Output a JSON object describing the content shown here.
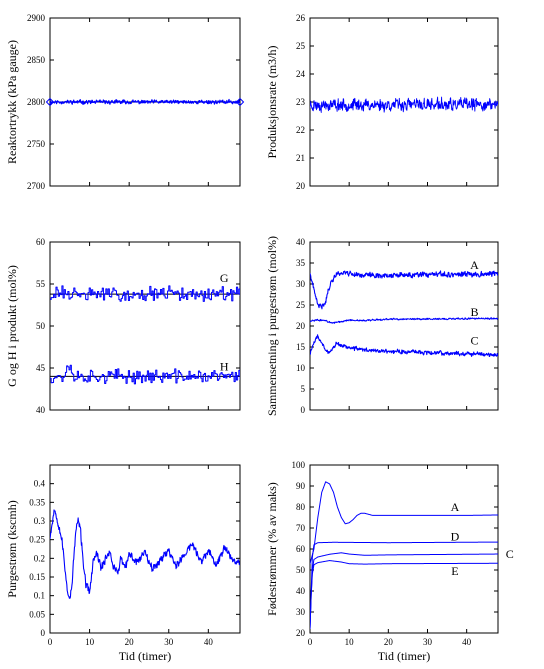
{
  "colors": {
    "series": "#0000ff",
    "setpoint": "#000000",
    "axes": "#000000",
    "background": "#ffffff"
  },
  "chart_data": [
    {
      "type": "line",
      "ylabel": "Reaktortrykk (kPa gauge)",
      "xlabel": "",
      "xlim": [
        0,
        48
      ],
      "ylim": [
        2700,
        2900
      ],
      "xticks": [
        0,
        10,
        20,
        30,
        40
      ],
      "yticks": [
        2700,
        2750,
        2800,
        2850,
        2900
      ],
      "show_xticklabels": false,
      "grid": false,
      "setpoint": 2800,
      "series": [
        {
          "kind": "noisy",
          "points": [
            [
              0,
              2800
            ],
            [
              48,
              2800
            ]
          ],
          "noise": 1.6,
          "seed": 11,
          "stroke_width": 1.2
        }
      ],
      "markers": [
        {
          "x": 0,
          "y": 2800,
          "shape": "diamond"
        },
        {
          "x": 48,
          "y": 2800,
          "shape": "diamond"
        }
      ],
      "annotations": []
    },
    {
      "type": "line",
      "ylabel": "Produksjonsrate (m3/h)",
      "xlabel": "",
      "xlim": [
        0,
        48
      ],
      "ylim": [
        20,
        26
      ],
      "xticks": [
        0,
        10,
        20,
        30,
        40
      ],
      "yticks": [
        20,
        21,
        22,
        23,
        24,
        25,
        26
      ],
      "show_xticklabels": false,
      "grid": false,
      "series": [
        {
          "kind": "noisy",
          "points": [
            [
              0,
              22.9
            ],
            [
              48,
              22.9
            ]
          ],
          "noise": 0.16,
          "seed": 23,
          "stroke_width": 0.9
        }
      ],
      "annotations": []
    },
    {
      "type": "line",
      "ylabel": "G og H i produkt (mol%)",
      "xlabel": "",
      "xlim": [
        0,
        48
      ],
      "ylim": [
        40,
        60
      ],
      "xticks": [
        0,
        10,
        20,
        30,
        40
      ],
      "yticks": [
        40,
        45,
        50,
        55,
        60
      ],
      "show_xticklabels": false,
      "grid": false,
      "setpoints": [
        53.8,
        44
      ],
      "series": [
        {
          "name": "G",
          "kind": "stairs",
          "points": [
            [
              0,
              53.8
            ],
            [
              48,
              53.8
            ]
          ],
          "noise": 0.7,
          "seed": 31,
          "stroke_width": 1
        },
        {
          "name": "H",
          "kind": "stairs",
          "points": [
            [
              0,
              44
            ],
            [
              3.5,
              44
            ],
            [
              4.5,
              45.5
            ],
            [
              6,
              44
            ],
            [
              48,
              44
            ]
          ],
          "noise": 0.65,
          "seed": 37,
          "stroke_width": 1
        }
      ],
      "annotations": [
        {
          "text": "G",
          "x": 44,
          "y": 55.7
        },
        {
          "text": "H",
          "x": 44,
          "y": 45.2
        }
      ]
    },
    {
      "type": "line",
      "ylabel": "Sammensetning i purgestrøm (mol%)",
      "xlabel": "",
      "xlim": [
        0,
        48
      ],
      "ylim": [
        0,
        40
      ],
      "xticks": [
        0,
        10,
        20,
        30,
        40
      ],
      "yticks": [
        0,
        5,
        10,
        15,
        20,
        25,
        30,
        35,
        40
      ],
      "show_xticklabels": false,
      "grid": false,
      "series": [
        {
          "name": "A",
          "kind": "noisy",
          "noise": 0.45,
          "seed": 41,
          "stroke_width": 1.1,
          "points": [
            [
              0,
              32.5
            ],
            [
              1,
              28.5
            ],
            [
              2,
              25
            ],
            [
              3,
              24.5
            ],
            [
              4,
              26
            ],
            [
              5,
              29.5
            ],
            [
              6,
              31.5
            ],
            [
              7,
              32.5
            ],
            [
              9,
              32.8
            ],
            [
              12,
              32.2
            ],
            [
              20,
              32
            ],
            [
              30,
              32.2
            ],
            [
              40,
              32.3
            ],
            [
              48,
              32.5
            ]
          ]
        },
        {
          "name": "B",
          "kind": "noisy",
          "noise": 0.15,
          "seed": 43,
          "stroke_width": 1,
          "points": [
            [
              0,
              21.2
            ],
            [
              2,
              21.5
            ],
            [
              4,
              21.2
            ],
            [
              6,
              20.7
            ],
            [
              8,
              21
            ],
            [
              10,
              21.4
            ],
            [
              14,
              21.3
            ],
            [
              20,
              21.6
            ],
            [
              48,
              21.8
            ]
          ]
        },
        {
          "name": "C",
          "kind": "noisy",
          "noise": 0.35,
          "seed": 47,
          "stroke_width": 1.1,
          "points": [
            [
              0,
              13.5
            ],
            [
              1,
              16
            ],
            [
              2,
              17.5
            ],
            [
              3,
              16
            ],
            [
              4,
              14
            ],
            [
              5,
              13.8
            ],
            [
              6,
              15.2
            ],
            [
              7,
              15.8
            ],
            [
              8,
              15.4
            ],
            [
              10,
              14.8
            ],
            [
              15,
              14.2
            ],
            [
              20,
              14
            ],
            [
              30,
              13.7
            ],
            [
              40,
              13.4
            ],
            [
              48,
              13.2
            ]
          ]
        }
      ],
      "annotations": [
        {
          "text": "A",
          "x": 42,
          "y": 34.5
        },
        {
          "text": "B",
          "x": 42,
          "y": 23.3
        },
        {
          "text": "C",
          "x": 42,
          "y": 16.5
        }
      ]
    },
    {
      "type": "line",
      "ylabel": "Purgestrøm (kscmh)",
      "xlabel": "Tid (timer)",
      "xlim": [
        0,
        48
      ],
      "ylim": [
        0,
        0.45
      ],
      "xticks": [
        0,
        10,
        20,
        30,
        40
      ],
      "yticks": [
        0,
        0.05,
        0.1,
        0.15,
        0.2,
        0.25,
        0.3,
        0.35,
        0.4
      ],
      "ytick_labels": [
        "0",
        "0.05",
        "0.1",
        "0.15",
        "0.2",
        "0.25",
        "0.3",
        "0.35",
        "0.4"
      ],
      "show_xticklabels": true,
      "grid": false,
      "series": [
        {
          "kind": "noisy",
          "noise": 0.008,
          "seed": 53,
          "stroke_width": 1.1,
          "points": [
            [
              0,
              0.26
            ],
            [
              0.5,
              0.29
            ],
            [
              1,
              0.33
            ],
            [
              1.5,
              0.32
            ],
            [
              2,
              0.3
            ],
            [
              3,
              0.25
            ],
            [
              3.5,
              0.2
            ],
            [
              4,
              0.15
            ],
            [
              4.5,
              0.11
            ],
            [
              5,
              0.09
            ],
            [
              5.5,
              0.12
            ],
            [
              6,
              0.2
            ],
            [
              6.5,
              0.27
            ],
            [
              7,
              0.3
            ],
            [
              7.5,
              0.29
            ],
            [
              8,
              0.24
            ],
            [
              8.5,
              0.18
            ],
            [
              9,
              0.13
            ],
            [
              10,
              0.11
            ],
            [
              10.5,
              0.15
            ],
            [
              11,
              0.2
            ],
            [
              12,
              0.21
            ],
            [
              13,
              0.17
            ],
            [
              14,
              0.2
            ],
            [
              15,
              0.22
            ],
            [
              16,
              0.18
            ],
            [
              17,
              0.16
            ],
            [
              18,
              0.2
            ],
            [
              19,
              0.17
            ],
            [
              20,
              0.21
            ],
            [
              22,
              0.19
            ],
            [
              24,
              0.22
            ],
            [
              26,
              0.17
            ],
            [
              28,
              0.2
            ],
            [
              30,
              0.22
            ],
            [
              32,
              0.18
            ],
            [
              34,
              0.21
            ],
            [
              36,
              0.24
            ],
            [
              38,
              0.19
            ],
            [
              40,
              0.22
            ],
            [
              42,
              0.18
            ],
            [
              44,
              0.23
            ],
            [
              46,
              0.2
            ],
            [
              48,
              0.19
            ]
          ]
        }
      ],
      "annotations": []
    },
    {
      "type": "line",
      "ylabel": "Fødestrømmer (% av maks)",
      "xlabel": "Tid (timer)",
      "xlim": [
        0,
        48
      ],
      "ylim": [
        20,
        100
      ],
      "xticks": [
        0,
        10,
        20,
        30,
        40
      ],
      "yticks": [
        20,
        30,
        40,
        50,
        60,
        70,
        80,
        90,
        100
      ],
      "show_xticklabels": true,
      "grid": false,
      "series": [
        {
          "name": "A",
          "kind": "smooth",
          "stroke_width": 1,
          "points": [
            [
              0,
              53
            ],
            [
              1,
              60
            ],
            [
              2,
              75
            ],
            [
              3,
              87
            ],
            [
              4,
              92
            ],
            [
              5,
              91
            ],
            [
              6,
              87
            ],
            [
              7,
              80
            ],
            [
              8,
              75
            ],
            [
              9,
              72
            ],
            [
              10,
              72.5
            ],
            [
              11,
              74
            ],
            [
              12,
              76
            ],
            [
              13,
              77
            ],
            [
              14,
              77
            ],
            [
              16,
              76
            ],
            [
              18,
              76
            ],
            [
              20,
              76
            ],
            [
              30,
              76
            ],
            [
              40,
              76
            ],
            [
              48,
              76.2
            ]
          ]
        },
        {
          "name": "D",
          "kind": "smooth",
          "stroke_width": 1,
          "points": [
            [
              0,
              22
            ],
            [
              0.3,
              40
            ],
            [
              0.6,
              56
            ],
            [
              1,
              62
            ],
            [
              2,
              63
            ],
            [
              6,
              63.2
            ],
            [
              20,
              63
            ],
            [
              48,
              63.3
            ]
          ]
        },
        {
          "name": "C",
          "kind": "smooth",
          "stroke_width": 1,
          "points": [
            [
              0,
              22
            ],
            [
              0.3,
              38
            ],
            [
              0.6,
              50
            ],
            [
              1,
              55
            ],
            [
              2,
              56.2
            ],
            [
              5,
              57.5
            ],
            [
              8,
              58.2
            ],
            [
              10,
              57.6
            ],
            [
              14,
              57
            ],
            [
              20,
              57.2
            ],
            [
              48,
              57.6
            ]
          ]
        },
        {
          "name": "E",
          "kind": "smooth",
          "stroke_width": 1,
          "points": [
            [
              0,
              22
            ],
            [
              0.3,
              38
            ],
            [
              0.6,
              48
            ],
            [
              1,
              52.5
            ],
            [
              2,
              53.5
            ],
            [
              5,
              54.5
            ],
            [
              8,
              53.8
            ],
            [
              10,
              53
            ],
            [
              14,
              52.8
            ],
            [
              20,
              53
            ],
            [
              48,
              53.2
            ]
          ]
        }
      ],
      "annotations": [
        {
          "text": "A",
          "x": 37,
          "y": 80
        },
        {
          "text": "D",
          "x": 37,
          "y": 66
        },
        {
          "text": "C",
          "x": 51,
          "y": 57.6
        },
        {
          "text": "E",
          "x": 37,
          "y": 49.5
        }
      ]
    }
  ]
}
